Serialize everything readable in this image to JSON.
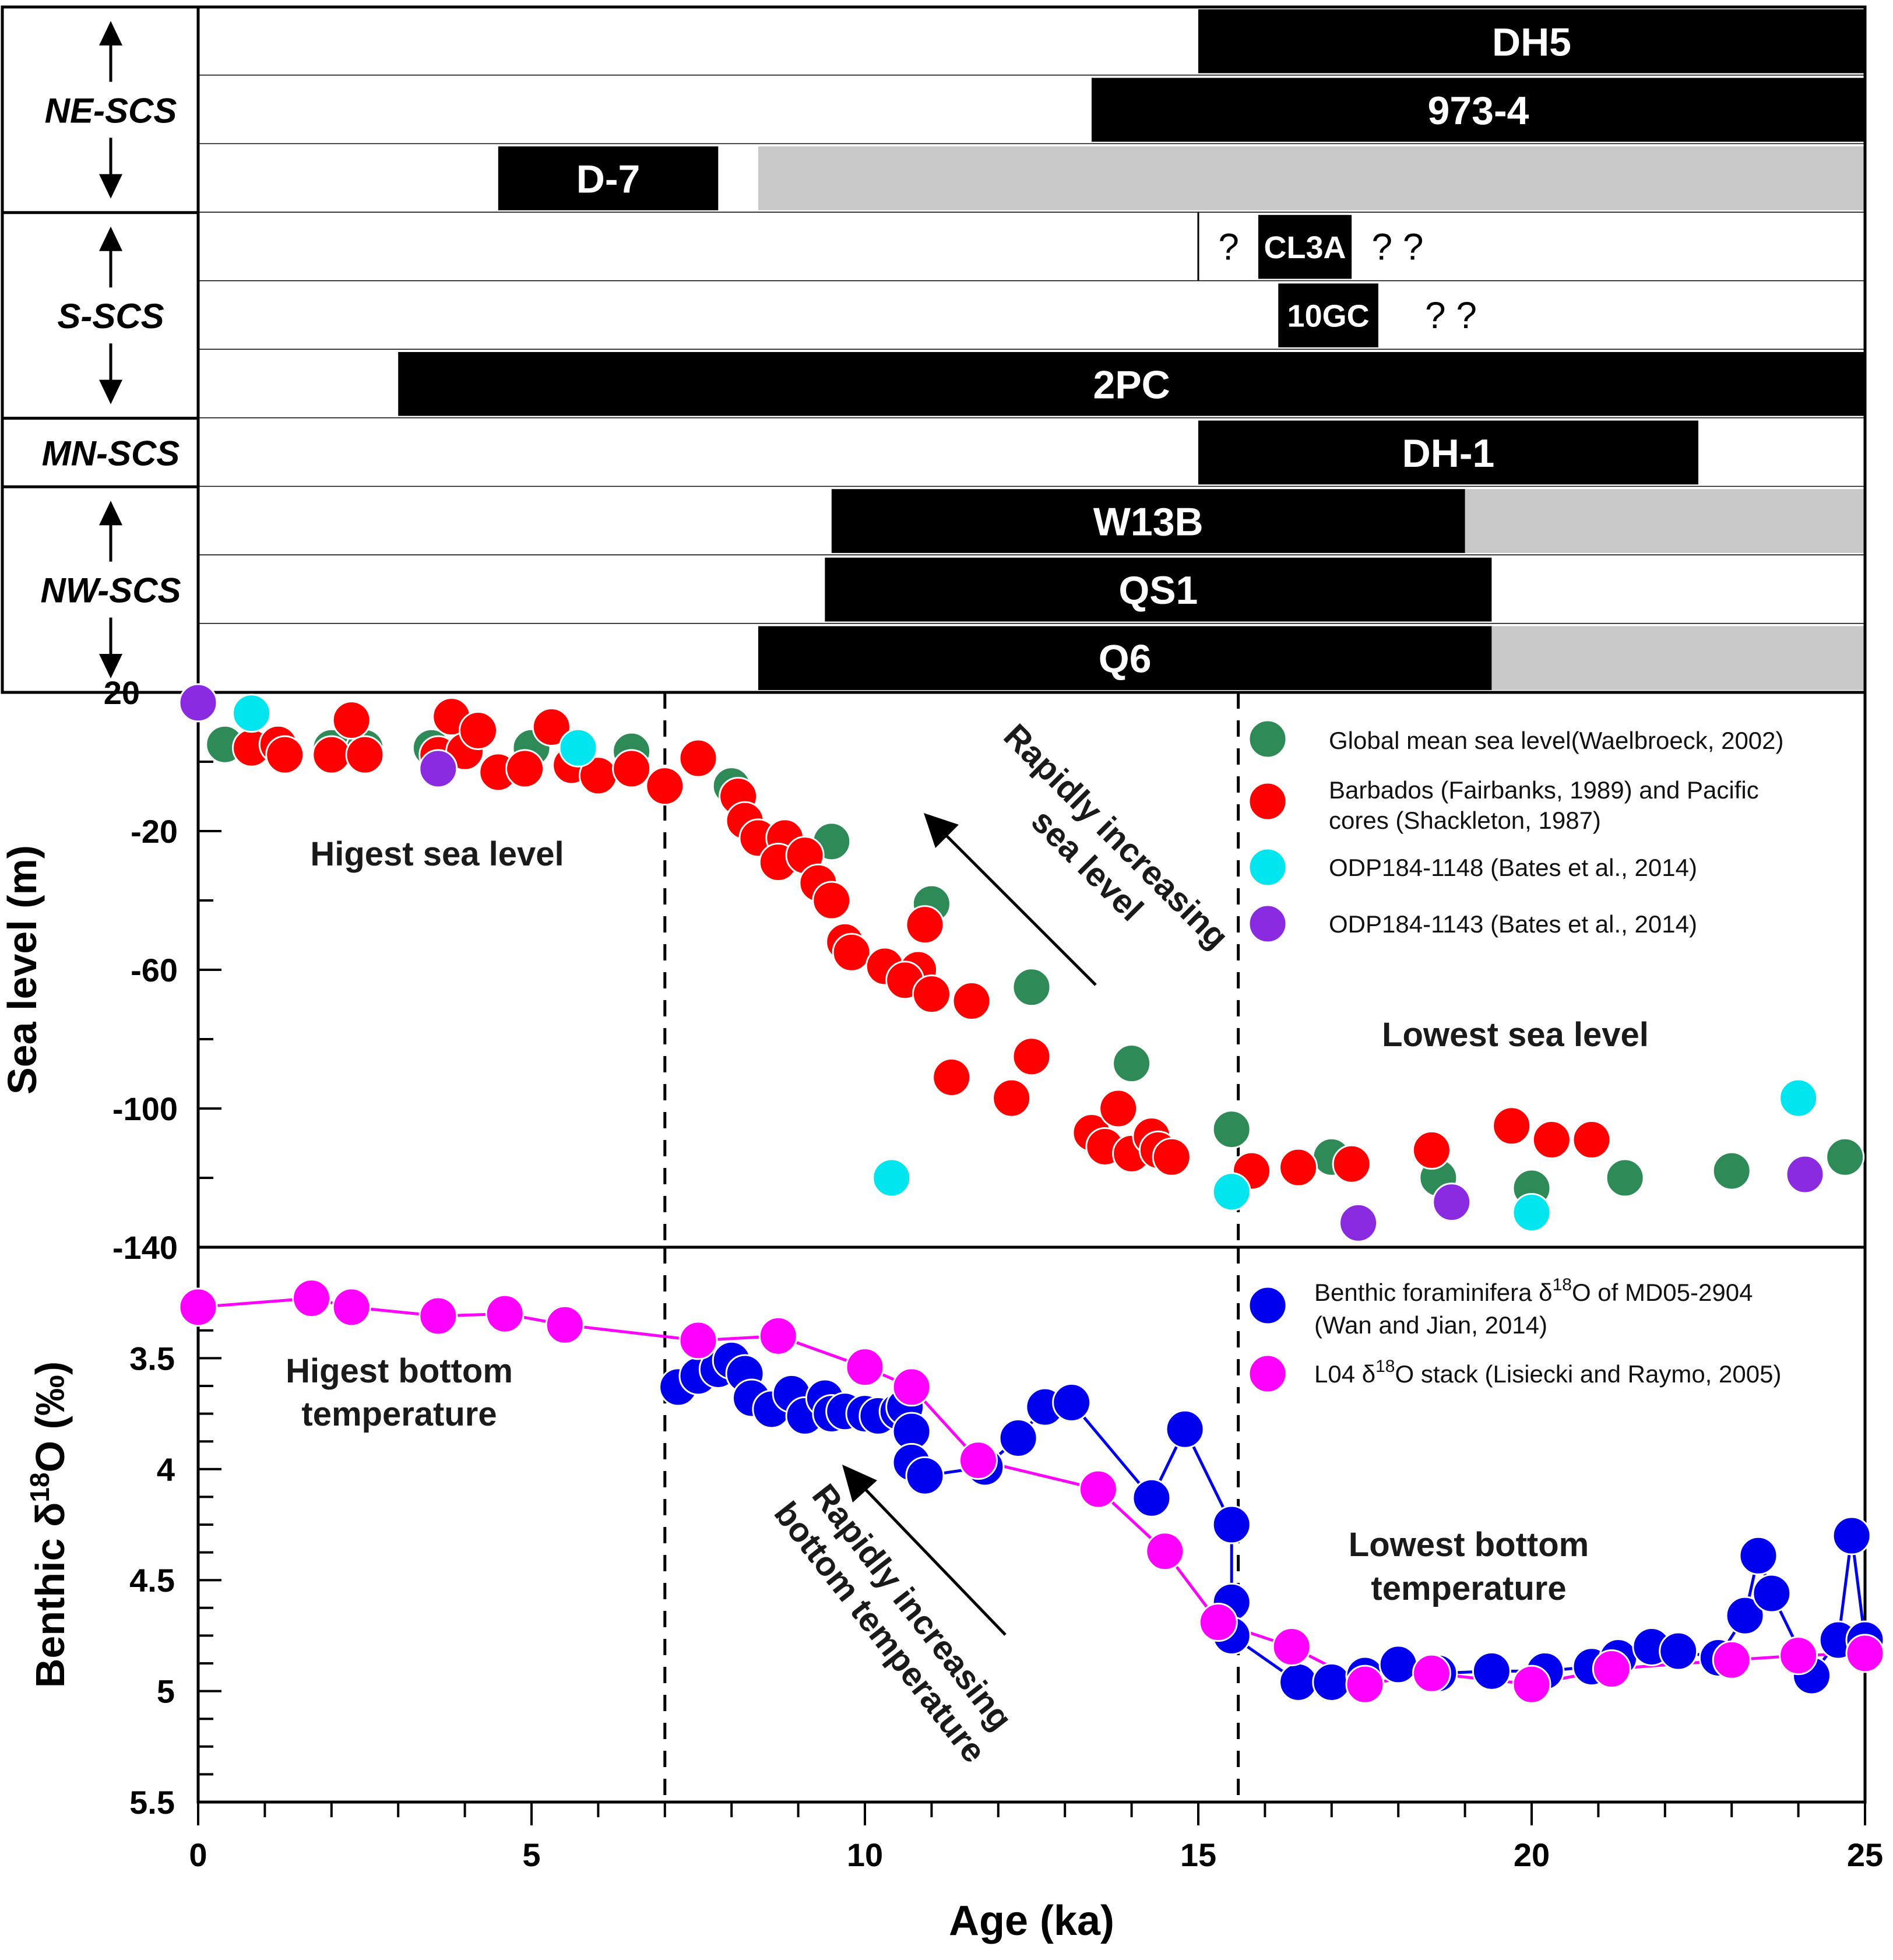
{
  "chart_data": [
    {
      "type": "timeline",
      "title": "",
      "regions": [
        "NE-SCS",
        "S-SCS",
        "MN-SCS",
        "NW-SCS"
      ],
      "cores": [
        {
          "region": "NE-SCS",
          "name": "DH5",
          "black": [
            15,
            25
          ],
          "gray": null,
          "question_marks": ""
        },
        {
          "region": "NE-SCS",
          "name": "973-4",
          "black": [
            13.4,
            25
          ],
          "gray": null,
          "question_marks": ""
        },
        {
          "region": "NE-SCS",
          "name": "D-7",
          "black": [
            4.5,
            7.8
          ],
          "gray": [
            8.4,
            25
          ],
          "question_marks": ""
        },
        {
          "region": "S-SCS",
          "name": "CL3A",
          "black": [
            15.9,
            17.3
          ],
          "gray": null,
          "question_marks": "?  ?  ?"
        },
        {
          "region": "S-SCS",
          "name": "10GC",
          "black": [
            16.2,
            17.7
          ],
          "gray": null,
          "question_marks": "?  ?"
        },
        {
          "region": "S-SCS",
          "name": "2PC",
          "black": [
            3,
            25
          ],
          "gray": null,
          "question_marks": ""
        },
        {
          "region": "MN-SCS",
          "name": "DH-1",
          "black": [
            15,
            22.5
          ],
          "gray": null,
          "question_marks": ""
        },
        {
          "region": "NW-SCS",
          "name": "W13B",
          "black": [
            9.5,
            19
          ],
          "gray": [
            19,
            25
          ],
          "question_marks": ""
        },
        {
          "region": "NW-SCS",
          "name": "QS1",
          "black": [
            9.4,
            19.4
          ],
          "gray": null,
          "question_marks": ""
        },
        {
          "region": "NW-SCS",
          "name": "Q6",
          "black": [
            8.4,
            19.4
          ],
          "gray": [
            19.4,
            25
          ],
          "question_marks": ""
        }
      ]
    },
    {
      "type": "scatter",
      "ylabel": "Sea level (m)",
      "ylim": [
        -140,
        20
      ],
      "yticks": [
        "20",
        "-20",
        "-60",
        "-100",
        "-140"
      ],
      "annotations": [
        "Higest sea level",
        "Lowest sea level",
        "Rapidly increasing",
        "sea level"
      ],
      "series": [
        {
          "name": "Global mean sea level (Waelbroeck, 2002)",
          "legend": "Global mean sea level(Waelbroeck, 2002)",
          "color": "#2e8b57",
          "points": [
            [
              0.4,
              5
            ],
            [
              2,
              4
            ],
            [
              2.5,
              4
            ],
            [
              3.5,
              4
            ],
            [
              5,
              4
            ],
            [
              6.5,
              3
            ],
            [
              8,
              -7
            ],
            [
              9.5,
              -23
            ],
            [
              11,
              -41
            ],
            [
              12.5,
              -65
            ],
            [
              14,
              -87
            ],
            [
              15.5,
              -106
            ],
            [
              17,
              -114
            ],
            [
              18.6,
              -120
            ],
            [
              20,
              -123
            ],
            [
              21.4,
              -120
            ],
            [
              23,
              -118
            ],
            [
              24.7,
              -114
            ]
          ]
        },
        {
          "name": "Barbados (Fairbanks, 1989) and Pacific cores (Shackleton, 1987)",
          "legend": "Barbados (Fairbanks, 1989) and Pacific cores (Shackleton, 1987)",
          "color": "#ff0000",
          "points": [
            [
              0.8,
              4
            ],
            [
              1.2,
              5
            ],
            [
              1.3,
              2
            ],
            [
              2,
              2
            ],
            [
              2.3,
              12
            ],
            [
              2.5,
              2
            ],
            [
              3.6,
              2
            ],
            [
              3.8,
              13
            ],
            [
              4,
              3
            ],
            [
              4.2,
              9
            ],
            [
              4.5,
              -3
            ],
            [
              4.9,
              -2
            ],
            [
              5.3,
              10
            ],
            [
              5.6,
              -1
            ],
            [
              6.0,
              -4
            ],
            [
              6.5,
              -2
            ],
            [
              7,
              -7
            ],
            [
              7.5,
              1
            ],
            [
              8.1,
              -10
            ],
            [
              8.2,
              -17
            ],
            [
              8.4,
              -22
            ],
            [
              8.8,
              -22
            ],
            [
              8.7,
              -29
            ],
            [
              9.1,
              -27
            ],
            [
              9.3,
              -35
            ],
            [
              9.5,
              -40
            ],
            [
              9.7,
              -52
            ],
            [
              9.8,
              -55
            ],
            [
              10.3,
              -59
            ],
            [
              10.8,
              -60
            ],
            [
              10.6,
              -63
            ],
            [
              11,
              -67
            ],
            [
              10.9,
              -47
            ],
            [
              11.6,
              -69
            ],
            [
              11.3,
              -91
            ],
            [
              12.2,
              -97
            ],
            [
              12.5,
              -85
            ],
            [
              13.4,
              -107
            ],
            [
              13.6,
              -111
            ],
            [
              13.8,
              -100
            ],
            [
              14,
              -113
            ],
            [
              14.3,
              -108
            ],
            [
              14.4,
              -112
            ],
            [
              14.6,
              -114
            ],
            [
              15.8,
              -118
            ],
            [
              16.5,
              -117
            ],
            [
              17.3,
              -116
            ],
            [
              18.5,
              -112
            ],
            [
              19.7,
              -105
            ],
            [
              20.3,
              -109
            ],
            [
              20.9,
              -109
            ]
          ]
        },
        {
          "name": "ODP184-1148 (Bates et al., 2014)",
          "legend": "ODP184-1148 (Bates et al., 2014)",
          "color": "#00e5ee",
          "points": [
            [
              0.8,
              14
            ],
            [
              5.7,
              4
            ],
            [
              10.4,
              -120
            ],
            [
              15.5,
              -124
            ],
            [
              20,
              -130
            ],
            [
              24,
              -97
            ]
          ]
        },
        {
          "name": "ODP184-1143 (Bates et al., 2014)",
          "legend": "ODP184-1143 (Bates et al., 2014)",
          "color": "#8a2be2",
          "points": [
            [
              0,
              17
            ],
            [
              3.6,
              -2
            ],
            [
              17.4,
              -133
            ],
            [
              18.8,
              -127
            ],
            [
              24.1,
              -119
            ]
          ]
        }
      ]
    },
    {
      "type": "line",
      "ylabel": "Benthic δ18O (‰)",
      "ylim": [
        5.5,
        3
      ],
      "yticks": [
        "3.5",
        "4",
        "4.5",
        "5",
        "5.5"
      ],
      "xlabel": "Age (ka)",
      "xlim": [
        0,
        25
      ],
      "xticks": [
        "0",
        "5",
        "10",
        "15",
        "20",
        "25"
      ],
      "annotations": [
        "Higest bottom",
        "temperature",
        "Lowest bottom",
        "temperature",
        "Rapidly increasing",
        "bottom temperature"
      ],
      "series": [
        {
          "name": "Benthic foraminifera δ18O of MD05-2904 (Wan and Jian, 2014)",
          "legend_line1_pre": "Benthic foraminifera δ",
          "legend_line1_sup": "18",
          "legend_line1_post": "O of MD05-2904",
          "legend_line2": "(Wan and Jian, 2014)",
          "color": "#0000ee",
          "points": [
            [
              7.2,
              3.63
            ],
            [
              7.5,
              3.58
            ],
            [
              7.8,
              3.55
            ],
            [
              8,
              3.51
            ],
            [
              8.2,
              3.57
            ],
            [
              8.3,
              3.68
            ],
            [
              8.6,
              3.73
            ],
            [
              8.9,
              3.66
            ],
            [
              9.1,
              3.76
            ],
            [
              9.4,
              3.68
            ],
            [
              9.5,
              3.75
            ],
            [
              9.7,
              3.74
            ],
            [
              10,
              3.75
            ],
            [
              10.2,
              3.76
            ],
            [
              10.5,
              3.74
            ],
            [
              10.6,
              3.72
            ],
            [
              10.7,
              3.83
            ],
            [
              10.7,
              3.97
            ],
            [
              10.9,
              4.03
            ],
            [
              11.8,
              3.99
            ],
            [
              12.3,
              3.86
            ],
            [
              12.7,
              3.72
            ],
            [
              13.1,
              3.7
            ],
            [
              14.3,
              4.13
            ],
            [
              14.8,
              3.82
            ],
            [
              15.5,
              4.25
            ],
            [
              15.5,
              4.6
            ],
            [
              15.5,
              4.75
            ],
            [
              16.5,
              4.96
            ],
            [
              17,
              4.96
            ],
            [
              17.5,
              4.93
            ],
            [
              18,
              4.88
            ],
            [
              18.6,
              4.92
            ],
            [
              19.4,
              4.91
            ],
            [
              20.2,
              4.91
            ],
            [
              20.9,
              4.89
            ],
            [
              21.3,
              4.85
            ],
            [
              21.8,
              4.8
            ],
            [
              22.2,
              4.82
            ],
            [
              22.8,
              4.85
            ],
            [
              23.2,
              4.66
            ],
            [
              23.4,
              4.39
            ],
            [
              23.6,
              4.56
            ],
            [
              24.2,
              4.93
            ],
            [
              24.6,
              4.77
            ],
            [
              24.8,
              4.3
            ],
            [
              25,
              4.77
            ]
          ]
        },
        {
          "name": "L04 δ18O stack (Lisiecki and Raymo, 2005)",
          "legend_pre": "L04 δ",
          "legend_sup": "18",
          "legend_post": "O stack (Lisiecki and Raymo, 2005)",
          "color": "#ff00ff",
          "points": [
            [
              0,
              3.27
            ],
            [
              1.7,
              3.23
            ],
            [
              2.3,
              3.27
            ],
            [
              3.6,
              3.31
            ],
            [
              4.6,
              3.3
            ],
            [
              5.5,
              3.35
            ],
            [
              7.5,
              3.42
            ],
            [
              8.7,
              3.4
            ],
            [
              10,
              3.54
            ],
            [
              10.7,
              3.63
            ],
            [
              11.7,
              3.96
            ],
            [
              13.5,
              4.09
            ],
            [
              14.5,
              4.37
            ],
            [
              15.3,
              4.69
            ],
            [
              16.4,
              4.8
            ],
            [
              17.5,
              4.97
            ],
            [
              18.5,
              4.92
            ],
            [
              20,
              4.97
            ],
            [
              21.2,
              4.9
            ],
            [
              23,
              4.86
            ],
            [
              24,
              4.84
            ],
            [
              25,
              4.83
            ]
          ]
        }
      ]
    }
  ]
}
